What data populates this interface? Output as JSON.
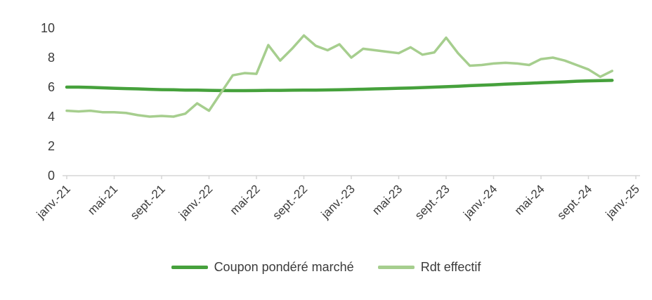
{
  "chart_data": {
    "type": "line",
    "title": "",
    "xlabel": "",
    "ylabel": "",
    "x_unit": "month",
    "months_span": 48,
    "x_tick_labels": [
      "janv.-21",
      "mai-21",
      "sept.-21",
      "janv.-22",
      "mai-22",
      "sept.-22",
      "janv.-23",
      "mai-23",
      "sept.-23",
      "janv.-24",
      "mai-24",
      "sept.-24",
      "janv.-25"
    ],
    "ylim": [
      0,
      10
    ],
    "y_ticks": [
      0,
      2,
      4,
      6,
      8,
      10
    ],
    "grid": false,
    "legend_position": "bottom",
    "axis_color": "#d6d6d6",
    "text_color": "#3b3b3b",
    "series": [
      {
        "name": "Coupon pondéré marché",
        "color": "#46a13c",
        "line_width": 4.5,
        "values": [
          6.0,
          6.0,
          5.98,
          5.95,
          5.92,
          5.9,
          5.88,
          5.85,
          5.83,
          5.82,
          5.8,
          5.8,
          5.78,
          5.77,
          5.76,
          5.76,
          5.77,
          5.78,
          5.78,
          5.79,
          5.8,
          5.8,
          5.81,
          5.82,
          5.84,
          5.86,
          5.88,
          5.9,
          5.92,
          5.94,
          5.97,
          6.0,
          6.03,
          6.06,
          6.1,
          6.13,
          6.16,
          6.2,
          6.23,
          6.26,
          6.3,
          6.33,
          6.36,
          6.4,
          6.42,
          6.44,
          6.46
        ]
      },
      {
        "name": "Rdt effectif",
        "color": "#a6ce8e",
        "line_width": 3.5,
        "values": [
          4.4,
          4.35,
          4.4,
          4.3,
          4.3,
          4.25,
          4.1,
          4.0,
          4.05,
          4.0,
          4.2,
          4.9,
          4.4,
          5.6,
          6.8,
          6.95,
          6.9,
          8.85,
          7.8,
          8.6,
          9.5,
          8.8,
          8.5,
          8.9,
          8.0,
          8.6,
          8.5,
          8.4,
          8.3,
          8.7,
          8.2,
          8.35,
          9.35,
          8.3,
          7.45,
          7.5,
          7.6,
          7.65,
          7.6,
          7.5,
          7.9,
          8.0,
          7.8,
          7.5,
          7.2,
          6.7,
          7.1
        ]
      }
    ],
    "legend": [
      {
        "label": "Coupon pondéré marché"
      },
      {
        "label": "Rdt effectif"
      }
    ]
  }
}
